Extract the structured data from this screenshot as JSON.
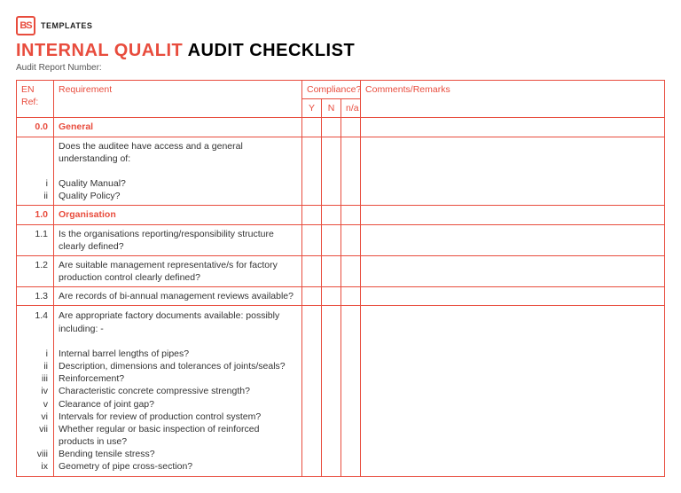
{
  "brand": {
    "logo_short": "BS",
    "logo_text": "TEMPLATES"
  },
  "title": {
    "red": "INTERNAL QUALIT",
    "black": "AUDIT CHECKLIST"
  },
  "subtitle": "Audit Report Number:",
  "headers": {
    "ref": "EN Ref:",
    "req": "Requirement",
    "compliance": "Compliance?",
    "y": "Y",
    "n": "N",
    "na": "n/a",
    "comments": "Comments/Remarks"
  },
  "s0": {
    "ref": "0.0",
    "name": "General",
    "lead": "Does the auditee have access and a general understanding of:",
    "subs": [
      {
        "n": "i",
        "t": "Quality Manual?"
      },
      {
        "n": "ii",
        "t": "Quality Policy?"
      }
    ]
  },
  "s1": {
    "ref": "1.0",
    "name": "Organisation",
    "r1": {
      "ref": "1.1",
      "t": "Is the organisations reporting/responsibility structure clearly defined?"
    },
    "r2": {
      "ref": "1.2",
      "t": "Are suitable management representative/s for factory production control clearly defined?"
    },
    "r3": {
      "ref": "1.3",
      "t": "Are records of bi-annual management reviews available?"
    },
    "r4": {
      "ref": "1.4",
      "lead": "Are appropriate factory documents available: possibly including: -",
      "subs": [
        {
          "n": "i",
          "t": "Internal barrel lengths of pipes?"
        },
        {
          "n": "ii",
          "t": "Description, dimensions and tolerances of joints/seals?"
        },
        {
          "n": "iii",
          "t": "Reinforcement?"
        },
        {
          "n": "iv",
          "t": "Characteristic concrete compressive strength?"
        },
        {
          "n": "v",
          "t": "Clearance of joint gap?"
        },
        {
          "n": "vi",
          "t": "Intervals for review of production control system?"
        },
        {
          "n": "vii",
          "t": "Whether regular or basic inspection of reinforced products in use?"
        },
        {
          "n": "viii",
          "t": "Bending tensile stress?"
        },
        {
          "n": "ix",
          "t": "Geometry of pipe cross-section?"
        }
      ]
    }
  }
}
